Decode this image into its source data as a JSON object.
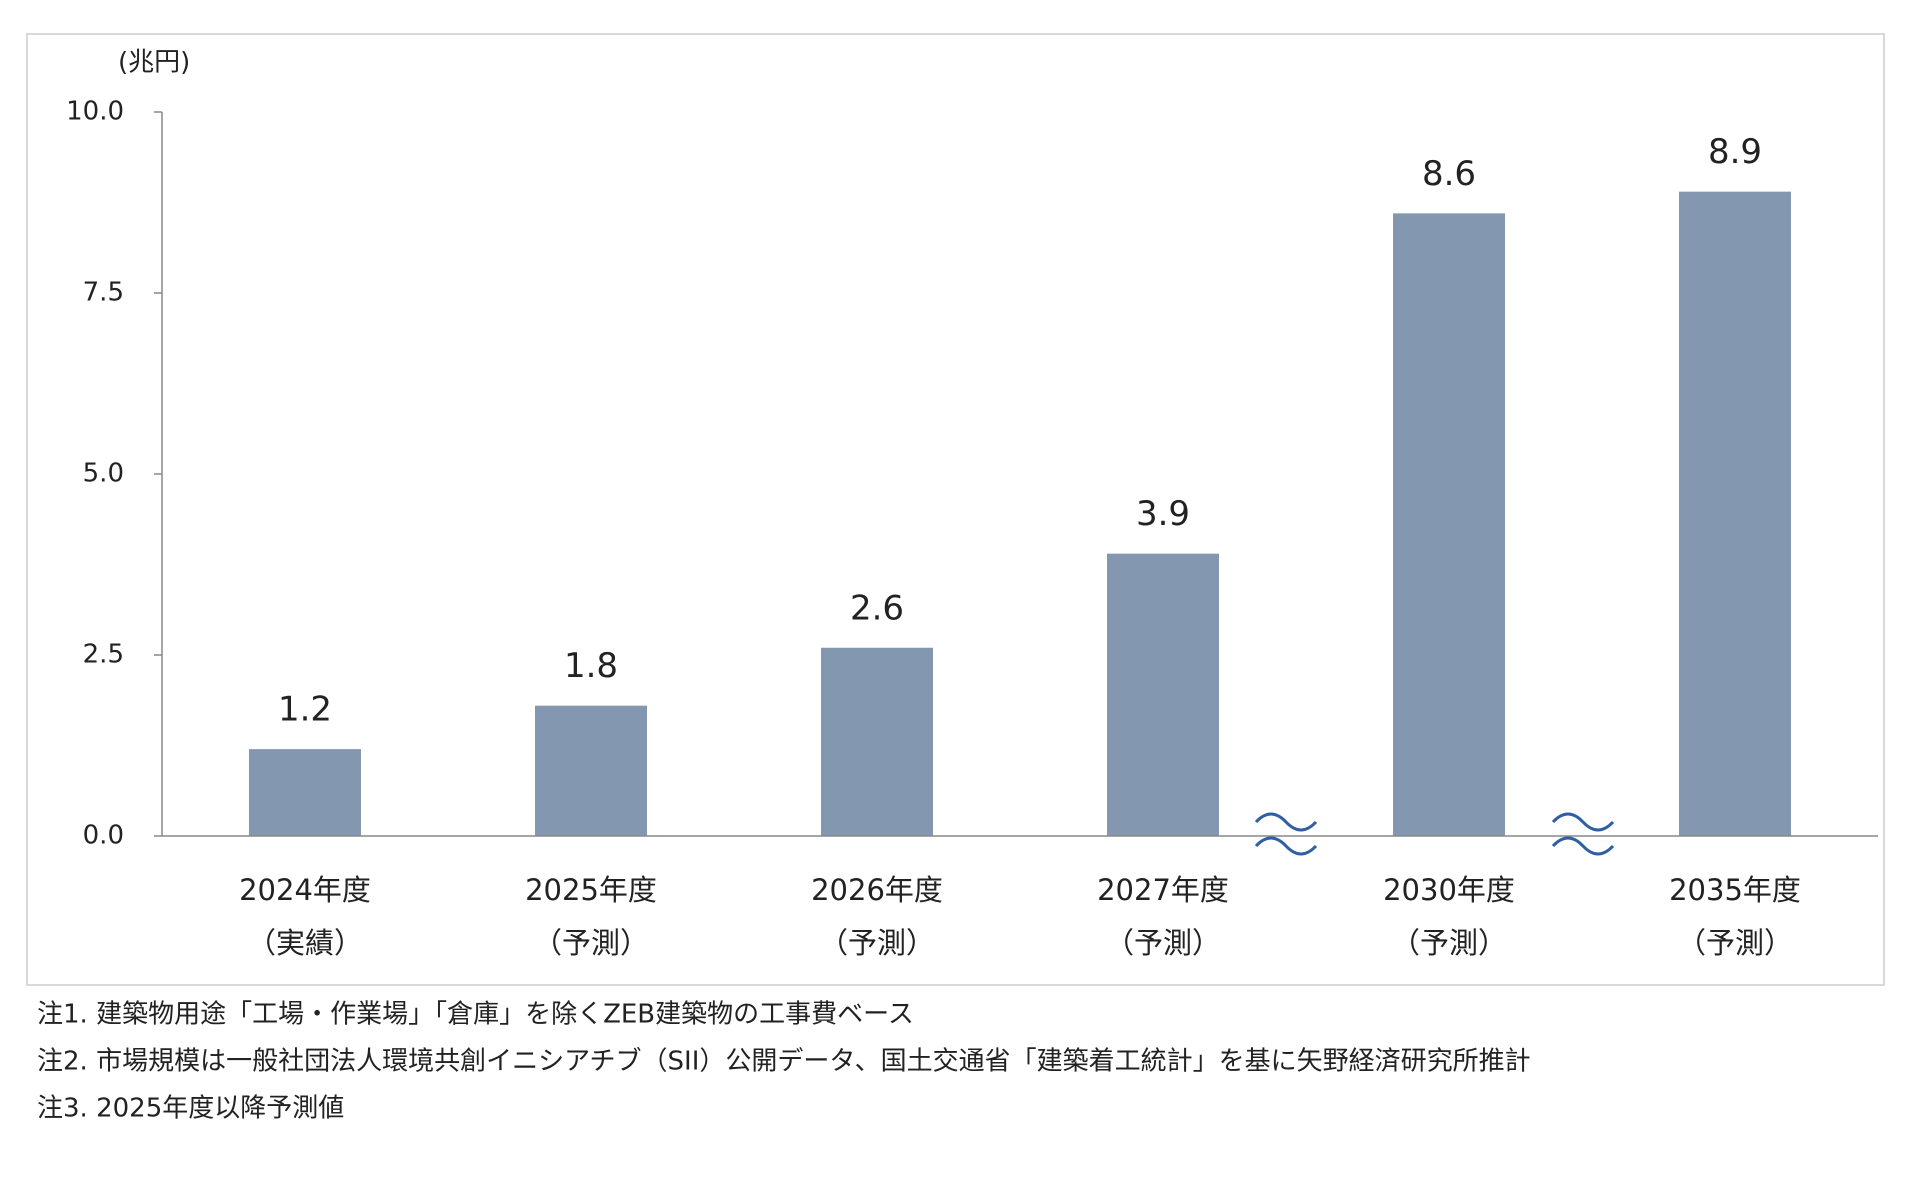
{
  "chart_data": {
    "type": "bar",
    "y_label": "(兆円)",
    "categories": [
      [
        "2024年度",
        "（実績）"
      ],
      [
        "2025年度",
        "（予測）"
      ],
      [
        "2026年度",
        "（予測）"
      ],
      [
        "2027年度",
        "（予測）"
      ],
      [
        "2030年度",
        "（予測）"
      ],
      [
        "2035年度",
        "（予測）"
      ]
    ],
    "values": [
      1.2,
      1.8,
      2.6,
      3.9,
      8.6,
      8.9
    ],
    "color": "#8497b0",
    "ylim": [
      0,
      10
    ],
    "yticks": [
      {
        "value": 0,
        "label": "0.0"
      },
      2.5,
      {
        "value": 5,
        "label": "5.0"
      },
      7.5,
      {
        "value": 10,
        "label": "10.0"
      }
    ],
    "grid": false,
    "notes": [
      "注1. 建築物用途「工場・作業場」「倉庫」を除くZEB建築物の工事費ベース",
      "注2. 市場規模は一般社団法人環境共創イニシアチブ（SII）公開データ、国土交通省「建築着工統計」を基に矢野経済研究所推計",
      "注3. 2025年度以降予測値"
    ]
  }
}
